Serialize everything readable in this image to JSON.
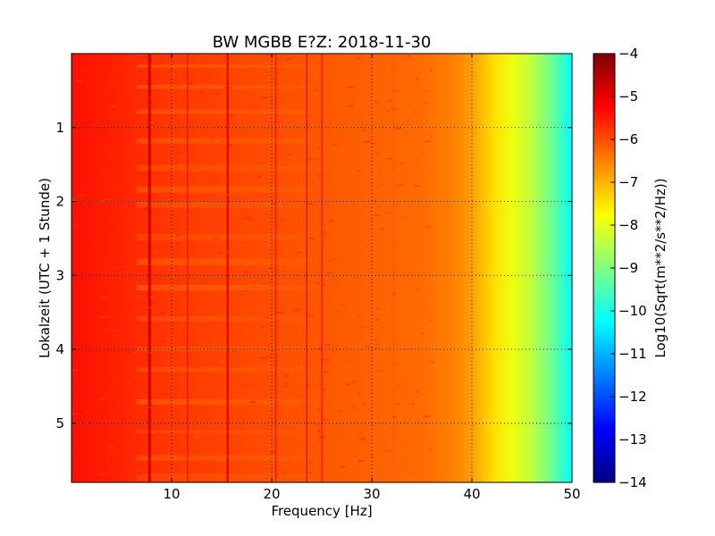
{
  "chart_data": {
    "type": "heatmap",
    "title": "BW MGBB E?Z: 2018-11-30",
    "xlabel": "Frequency [Hz]",
    "ylabel": "Lokalzeit (UTC + 1 Stunde)",
    "xlim": [
      0,
      50
    ],
    "ylim": [
      0,
      5.8
    ],
    "y_inverted": true,
    "x_ticks": [
      10,
      20,
      30,
      40,
      50
    ],
    "x_tick_labels": [
      "10",
      "20",
      "30",
      "40",
      "50"
    ],
    "y_ticks": [
      1,
      2,
      3,
      4,
      5
    ],
    "y_tick_labels": [
      "1",
      "2",
      "3",
      "4",
      "5"
    ],
    "grid": true,
    "colormap": "jet",
    "colorbar": {
      "label": "Log10(Sqrt(m**2/s**2/Hz))",
      "range": [
        -14,
        -4
      ],
      "ticks": [
        -4,
        -5,
        -6,
        -7,
        -8,
        -9,
        -10,
        -11,
        -12,
        -13,
        -14
      ],
      "tick_labels": [
        "−4",
        "−5",
        "−6",
        "−7",
        "−8",
        "−9",
        "−10",
        "−11",
        "−12",
        "−13",
        "−14"
      ]
    },
    "background_profile": {
      "frequency_hz": [
        0,
        10,
        25,
        35,
        38,
        40,
        42,
        44,
        46,
        48,
        49.5,
        50
      ],
      "log10_psd": [
        -5.4,
        -5.8,
        -6.1,
        -6.3,
        -6.5,
        -6.8,
        -7.4,
        -7.9,
        -8.4,
        -9.2,
        -10.0,
        -10.2
      ]
    },
    "line_features": [
      {
        "frequency_hz": 7.8,
        "log10_psd": -4.8
      },
      {
        "frequency_hz": 11.6,
        "log10_psd": -5.3
      },
      {
        "frequency_hz": 15.6,
        "log10_psd": -5.0
      },
      {
        "frequency_hz": 20.4,
        "log10_psd": -5.4
      },
      {
        "frequency_hz": 23.5,
        "log10_psd": -4.9
      },
      {
        "frequency_hz": 25.0,
        "log10_psd": -5.3
      },
      {
        "frequency_hz": 32.2,
        "log10_psd": -5.9
      }
    ]
  }
}
